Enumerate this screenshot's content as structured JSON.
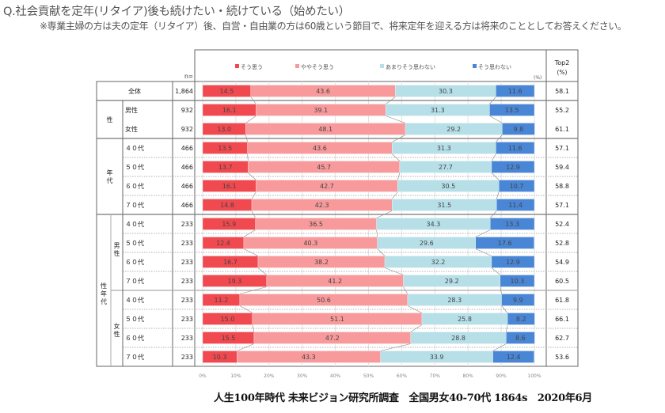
{
  "header": {
    "title": "Q.社会貢献を定年(リタイア)後も続けたい・続けている（始めたい）",
    "subtitle": "※専業主婦の方は夫の定年（リタイア）後、自営・自由業の方は60歳という節目で、将来定年を迎える方は将来のこととしてお答えください。"
  },
  "table": {
    "n_label": "n=",
    "top2_label": "Top2",
    "top2_unit": "(%)",
    "pct_unit": "(%)",
    "groups": [
      {
        "label": "全体",
        "span": 1
      },
      {
        "label": "性",
        "span": 2
      },
      {
        "label": "年代",
        "span": 4
      },
      {
        "label": "性年代",
        "span": 8,
        "sub": [
          {
            "label": "男性",
            "span": 4
          },
          {
            "label": "女性",
            "span": 4
          }
        ]
      }
    ]
  },
  "chart_data": {
    "type": "bar",
    "stacked": "100%",
    "orientation": "horizontal",
    "title": "Q.社会貢献を定年(リタイア)後も続けたい・続けている（始めたい）",
    "xlabel": "",
    "ylabel": "",
    "xlim": [
      0,
      100
    ],
    "x_ticks": [
      "0%",
      "10%",
      "20%",
      "30%",
      "40%",
      "50%",
      "60%",
      "70%",
      "80%",
      "90%",
      "100%"
    ],
    "legend_position": "top",
    "categories": [
      "全体",
      "男性",
      "女性",
      "４０代",
      "５０代",
      "６０代",
      "７０代",
      "４０代",
      "５０代",
      "６０代",
      "７０代",
      "４０代",
      "５０代",
      "６０代",
      "７０代"
    ],
    "category_groups": [
      "全体",
      "性",
      "性",
      "年代",
      "年代",
      "年代",
      "年代",
      "性年代・男性",
      "性年代・男性",
      "性年代・男性",
      "性年代・男性",
      "性年代・女性",
      "性年代・女性",
      "性年代・女性",
      "性年代・女性"
    ],
    "n": [
      "1,864",
      "932",
      "932",
      "466",
      "466",
      "466",
      "466",
      "233",
      "233",
      "233",
      "233",
      "233",
      "233",
      "233",
      "233"
    ],
    "series": [
      {
        "name": "そう思う",
        "color": "#f0494f",
        "values": [
          14.5,
          16.1,
          13.0,
          13.5,
          13.7,
          16.1,
          14.8,
          15.9,
          12.4,
          16.7,
          19.3,
          11.2,
          15.0,
          15.5,
          10.3
        ]
      },
      {
        "name": "ややそう思う",
        "color": "#f89a9c",
        "values": [
          43.6,
          39.1,
          48.1,
          43.6,
          45.7,
          42.7,
          42.3,
          36.5,
          40.3,
          38.2,
          41.2,
          50.6,
          51.1,
          47.2,
          43.3
        ]
      },
      {
        "name": "あまりそう思わない",
        "color": "#b6dfe8",
        "values": [
          30.3,
          31.3,
          29.2,
          31.3,
          27.7,
          30.5,
          31.5,
          34.3,
          29.6,
          32.2,
          29.2,
          28.3,
          25.8,
          28.8,
          33.9
        ]
      },
      {
        "name": "そう思わない",
        "color": "#4a86d6",
        "values": [
          11.6,
          13.5,
          9.8,
          11.6,
          12.9,
          10.7,
          11.4,
          13.3,
          17.6,
          12.9,
          10.3,
          9.9,
          8.2,
          8.6,
          12.4
        ]
      }
    ],
    "top2": [
      "58.1",
      "55.2",
      "61.1",
      "57.1",
      "59.4",
      "58.8",
      "57.1",
      "52.4",
      "52.8",
      "54.9",
      "60.5",
      "61.8",
      "66.1",
      "62.7",
      "53.6"
    ]
  },
  "footer": {
    "text": "人生100年時代 未来ビジョン研究所調査　全国男女40-70代 1864s　2020年6月"
  }
}
